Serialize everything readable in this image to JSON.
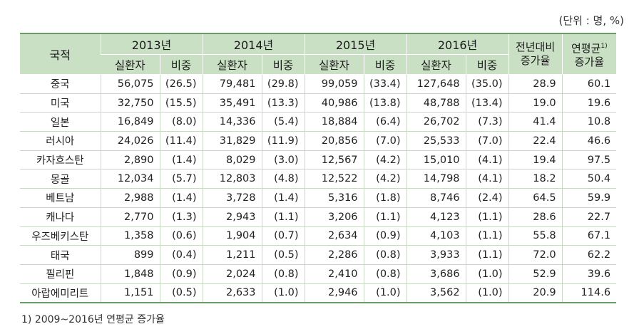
{
  "unit_note": "(단위 : 명, %)",
  "header": {
    "country": "국적",
    "years": [
      "2013년",
      "2014년",
      "2015년",
      "2016년"
    ],
    "sub_count": "실환자",
    "sub_share": "비중",
    "yoy": "전년대비 증가율",
    "cagr": "연평균",
    "cagr_sup": "1)",
    "cagr_line2": "증가율"
  },
  "rows": [
    {
      "country": "중국",
      "y2013": "56,075",
      "s2013": "(26.5)",
      "y2014": "79,481",
      "s2014": "(29.8)",
      "y2015": "99,059",
      "s2015": "(33.4)",
      "y2016": "127,648",
      "s2016": "(35.0)",
      "yoy": "28.9",
      "cagr": "60.1"
    },
    {
      "country": "미국",
      "y2013": "32,750",
      "s2013": "(15.5)",
      "y2014": "35,491",
      "s2014": "(13.3)",
      "y2015": "40,986",
      "s2015": "(13.8)",
      "y2016": "48,788",
      "s2016": "(13.4)",
      "yoy": "19.0",
      "cagr": "19.6"
    },
    {
      "country": "일본",
      "y2013": "16,849",
      "s2013": "(8.0)",
      "y2014": "14,336",
      "s2014": "(5.4)",
      "y2015": "18,884",
      "s2015": "(6.4)",
      "y2016": "26,702",
      "s2016": "(7.3)",
      "yoy": "41.4",
      "cagr": "10.8"
    },
    {
      "country": "러시아",
      "y2013": "24,026",
      "s2013": "(11.4)",
      "y2014": "31,829",
      "s2014": "(11.9)",
      "y2015": "20,856",
      "s2015": "(7.0)",
      "y2016": "25,533",
      "s2016": "(7.0)",
      "yoy": "22.4",
      "cagr": "46.6"
    },
    {
      "country": "카자흐스탄",
      "y2013": "2,890",
      "s2013": "(1.4)",
      "y2014": "8,029",
      "s2014": "(3.0)",
      "y2015": "12,567",
      "s2015": "(4.2)",
      "y2016": "15,010",
      "s2016": "(4.1)",
      "yoy": "19.4",
      "cagr": "97.5"
    },
    {
      "country": "몽골",
      "y2013": "12,034",
      "s2013": "(5.7)",
      "y2014": "12,803",
      "s2014": "(4.8)",
      "y2015": "12,522",
      "s2015": "(4.2)",
      "y2016": "14,798",
      "s2016": "(4.1)",
      "yoy": "18.2",
      "cagr": "50.4"
    },
    {
      "country": "베트남",
      "y2013": "2,988",
      "s2013": "(1.4)",
      "y2014": "3,728",
      "s2014": "(1.4)",
      "y2015": "5,316",
      "s2015": "(1.8)",
      "y2016": "8,746",
      "s2016": "(2.4)",
      "yoy": "64.5",
      "cagr": "59.9"
    },
    {
      "country": "캐나다",
      "y2013": "2,770",
      "s2013": "(1.3)",
      "y2014": "2,943",
      "s2014": "(1.1)",
      "y2015": "3,206",
      "s2015": "(1.1)",
      "y2016": "4,123",
      "s2016": "(1.1)",
      "yoy": "28.6",
      "cagr": "22.7"
    },
    {
      "country": "우즈베키스탄",
      "y2013": "1,358",
      "s2013": "(0.6)",
      "y2014": "1,904",
      "s2014": "(0.7)",
      "y2015": "2,634",
      "s2015": "(0.9)",
      "y2016": "4,103",
      "s2016": "(1.1)",
      "yoy": "55.8",
      "cagr": "67.1"
    },
    {
      "country": "태국",
      "y2013": "899",
      "s2013": "(0.4)",
      "y2014": "1,211",
      "s2014": "(0.5)",
      "y2015": "2,286",
      "s2015": "(0.8)",
      "y2016": "3,933",
      "s2016": "(1.1)",
      "yoy": "72.0",
      "cagr": "62.2"
    },
    {
      "country": "필리핀",
      "y2013": "1,848",
      "s2013": "(0.9)",
      "y2014": "2,024",
      "s2014": "(0.8)",
      "y2015": "2,410",
      "s2015": "(0.8)",
      "y2016": "3,686",
      "s2016": "(1.0)",
      "yoy": "52.9",
      "cagr": "39.6"
    },
    {
      "country": "아랍에미리트",
      "y2013": "1,151",
      "s2013": "(0.5)",
      "y2014": "2,633",
      "s2014": "(1.0)",
      "y2015": "2,946",
      "s2015": "(1.0)",
      "y2016": "3,562",
      "s2016": "(1.0)",
      "yoy": "20.9",
      "cagr": "114.6"
    }
  ],
  "footnote": "1) 2009~2016년 연평균 증가율",
  "colors": {
    "header_bg": "#c9e0c5",
    "rule": "#6c9c6a"
  }
}
